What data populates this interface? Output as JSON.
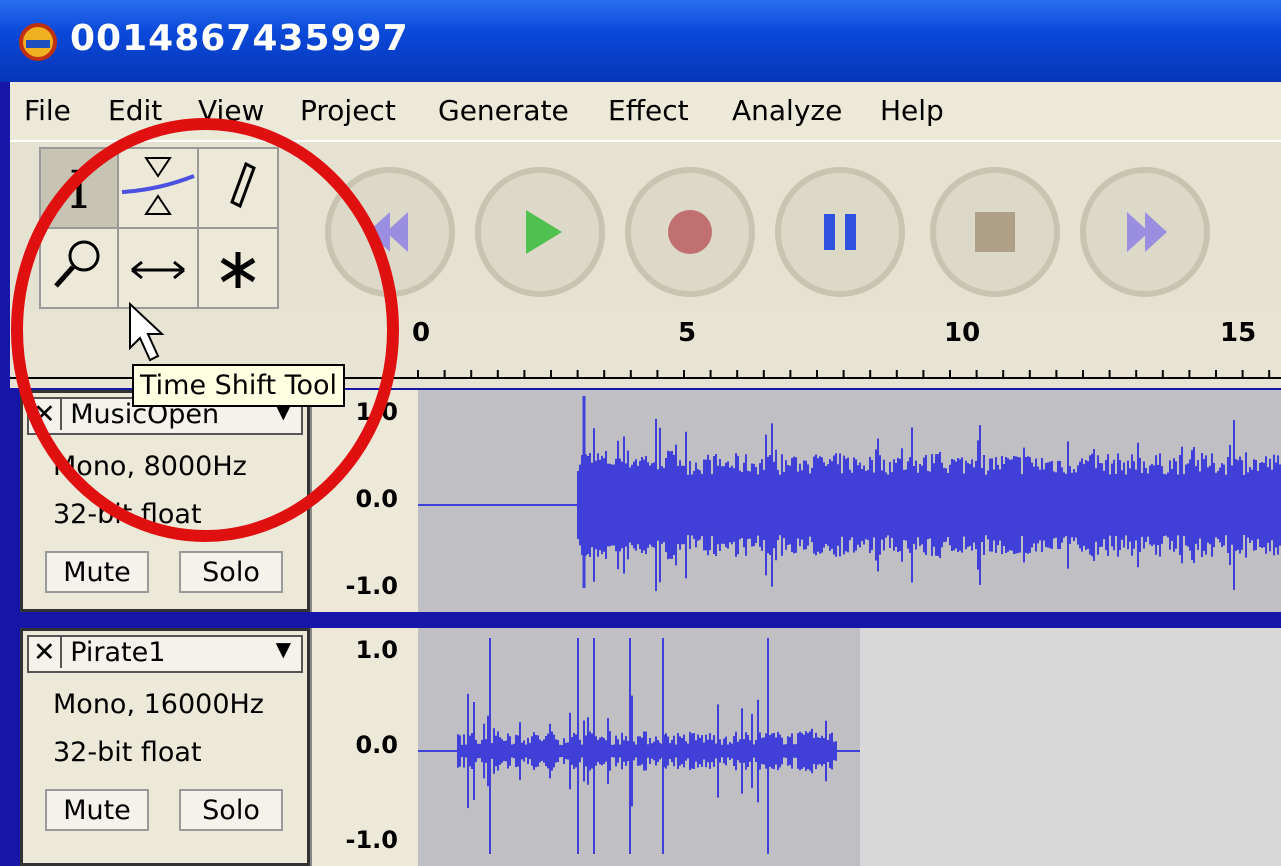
{
  "window": {
    "title": "0014867435997"
  },
  "menu": [
    "File",
    "Edit",
    "View",
    "Project",
    "Generate",
    "Effect",
    "Analyze",
    "Help"
  ],
  "tooltip": "Time Shift Tool",
  "ruler": [
    "0",
    "5",
    "10",
    "15"
  ],
  "tracks": [
    {
      "name": "MusicOpen",
      "format": "Mono, 8000Hz",
      "sample": "32-bit float",
      "mute": "Mute",
      "solo": "Solo",
      "scale": [
        "1.0",
        "0.0",
        "-1.0"
      ]
    },
    {
      "name": "Pirate1",
      "format": "Mono, 16000Hz",
      "sample": "32-bit float",
      "mute": "Mute",
      "solo": "Solo",
      "scale": [
        "1.0",
        "0.0",
        "-1.0"
      ]
    }
  ]
}
